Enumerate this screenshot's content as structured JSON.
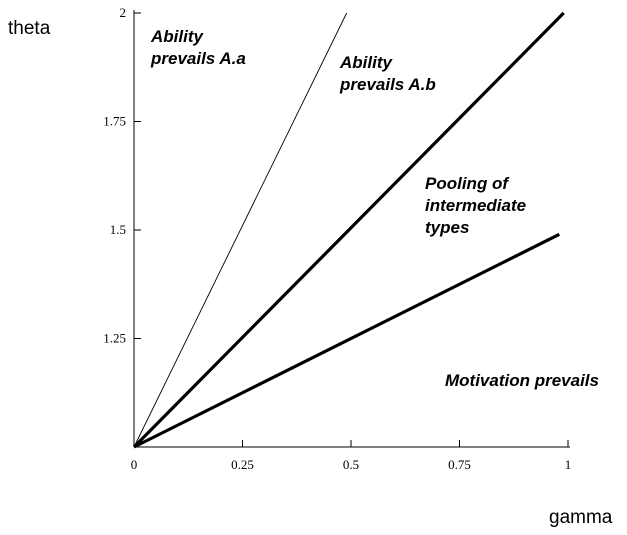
{
  "chart_data": {
    "type": "line",
    "xlabel": "gamma",
    "ylabel": "theta",
    "xlim": [
      0,
      1
    ],
    "ylim": [
      1,
      2
    ],
    "x_ticks": [
      {
        "value": 0,
        "label": "0"
      },
      {
        "value": 0.25,
        "label": "0.25"
      },
      {
        "value": 0.5,
        "label": "0.5"
      },
      {
        "value": 0.75,
        "label": "0.75"
      },
      {
        "value": 1,
        "label": "1"
      }
    ],
    "y_ticks": [
      {
        "value": 1.25,
        "label": "1.25"
      },
      {
        "value": 1.5,
        "label": "1.5"
      },
      {
        "value": 1.75,
        "label": "1.75"
      },
      {
        "value": 2,
        "label": "2"
      }
    ],
    "grid": false,
    "series": [
      {
        "style": "thin",
        "x": [
          0,
          0.49
        ],
        "y": [
          1,
          2
        ]
      },
      {
        "style": "thick",
        "x": [
          0,
          0.99
        ],
        "y": [
          1,
          2
        ]
      },
      {
        "style": "thick",
        "x": [
          0,
          0.98
        ],
        "y": [
          1,
          1.49
        ]
      }
    ],
    "annotations": [
      {
        "lines": [
          "Ability",
          "prevails A.a"
        ]
      },
      {
        "lines": [
          "Ability",
          "prevails A.b"
        ]
      },
      {
        "lines": [
          "Pooling of",
          "intermediate",
          "types"
        ]
      },
      {
        "lines": [
          "Motivation prevails"
        ]
      }
    ]
  }
}
